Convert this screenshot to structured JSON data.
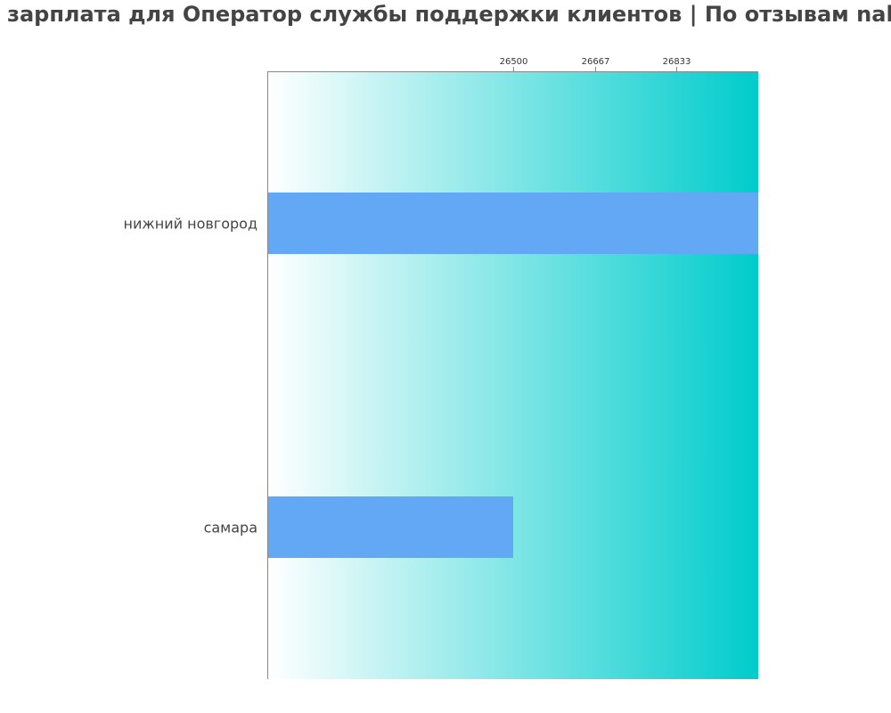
{
  "chart_data": {
    "type": "bar",
    "orientation": "horizontal",
    "title": "зарплата для Оператор службы поддержки клиентов | По отзывам nah",
    "categories": [
      "нижний новгород",
      "самара"
    ],
    "values": [
      27000,
      26500
    ],
    "x_ticks": [
      "26500",
      "26667",
      "26833"
    ],
    "xlim": [
      26000,
      27000
    ],
    "xlabel": "",
    "ylabel": "",
    "grid": false,
    "legend": "none",
    "colors": {
      "bar": "#63a8f5",
      "background_start": "#ffffff",
      "background_end": "#00cccc",
      "text": "#444444",
      "axis": "#888888"
    }
  }
}
